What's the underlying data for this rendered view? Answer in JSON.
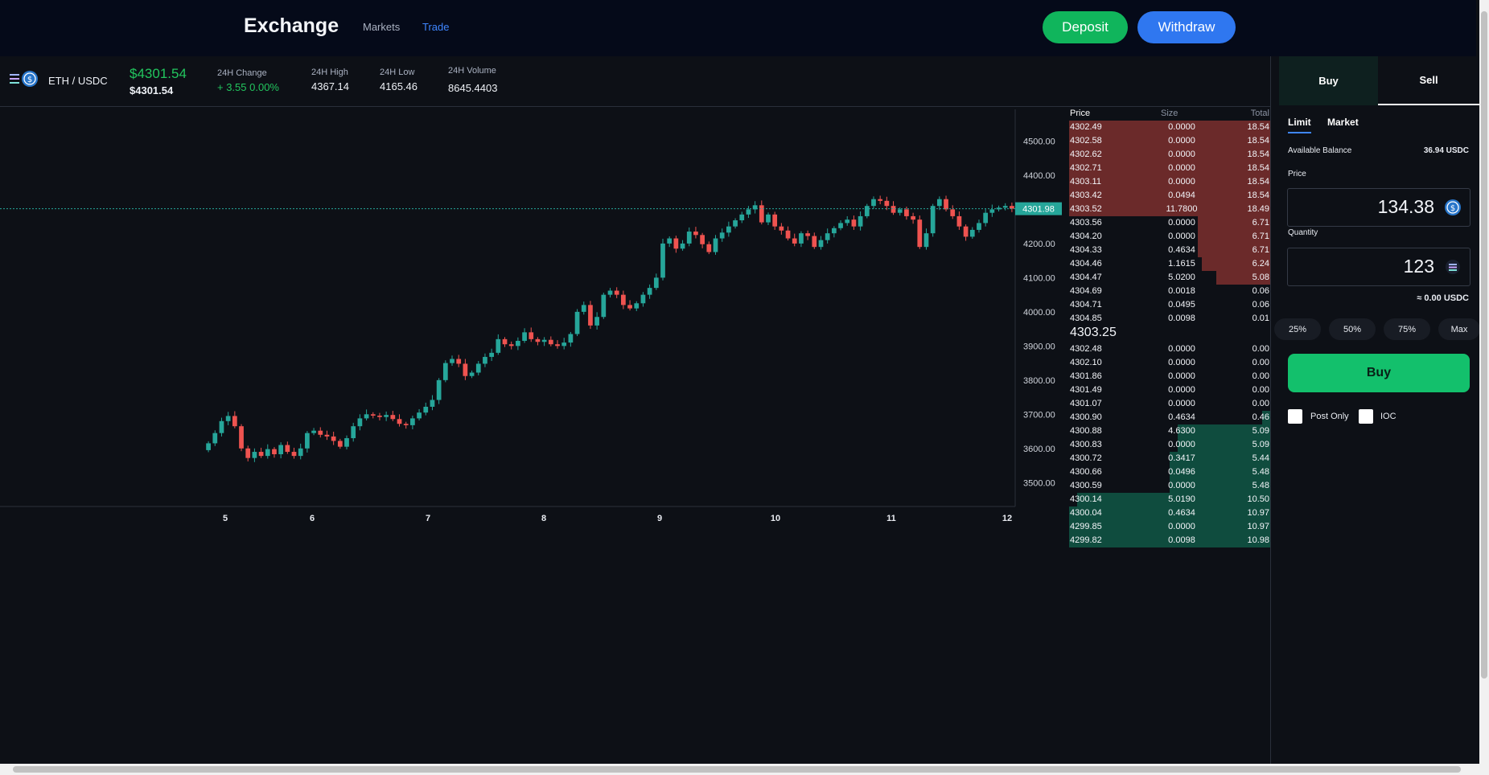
{
  "header": {
    "logo": "Exchange",
    "nav": [
      "Markets",
      "Trade"
    ],
    "deposit_label": "Deposit",
    "withdraw_label": "Withdraw"
  },
  "ticker": {
    "pair": "ETH / USDC",
    "price_big": "$4301.54",
    "price_small": "$4301.54",
    "change_label": "24H Change",
    "change_value": "+ 3.55 0.00%",
    "high_label": "24H High",
    "high_value": "4367.14",
    "low_label": "24H Low",
    "low_value": "4165.46",
    "volume_label": "24H Volume",
    "volume_value": "8645.4403"
  },
  "chart_data": {
    "type": "candlestick",
    "x_ticks": [
      "5",
      "6",
      "7",
      "8",
      "9",
      "10",
      "11",
      "12"
    ],
    "y_ticks": [
      "4500.00",
      "4400.00",
      "4300.00",
      "4200.00",
      "4100.00",
      "4000.00",
      "3900.00",
      "3800.00",
      "3700.00",
      "3600.00",
      "3500.00"
    ],
    "ylim": [
      3430,
      4600
    ],
    "current_price_label": "4301.98",
    "current_price": 4301.98,
    "up_color": "#26a69a",
    "down_color": "#ef5350",
    "closes": [
      3615,
      3645,
      3680,
      3695,
      3665,
      3600,
      3572,
      3590,
      3578,
      3598,
      3583,
      3610,
      3590,
      3578,
      3600,
      3645,
      3652,
      3640,
      3635,
      3622,
      3605,
      3630,
      3665,
      3688,
      3700,
      3696,
      3692,
      3698,
      3686,
      3672,
      3668,
      3688,
      3705,
      3722,
      3742,
      3800,
      3850,
      3862,
      3848,
      3812,
      3822,
      3848,
      3868,
      3880,
      3920,
      3905,
      3900,
      3915,
      3940,
      3920,
      3912,
      3918,
      3905,
      3900,
      3910,
      3935,
      4000,
      4020,
      3960,
      3985,
      4050,
      4062,
      4050,
      4020,
      4010,
      4025,
      4050,
      4070,
      4100,
      4200,
      4215,
      4185,
      4200,
      4235,
      4225,
      4198,
      4175,
      4215,
      4232,
      4250,
      4268,
      4285,
      4300,
      4312,
      4262,
      4285,
      4250,
      4238,
      4215,
      4200,
      4230,
      4222,
      4190,
      4210,
      4230,
      4245,
      4260,
      4270,
      4250,
      4280,
      4310,
      4330,
      4325,
      4310,
      4290,
      4300,
      4280,
      4270,
      4190,
      4230,
      4310,
      4330,
      4300,
      4280,
      4250,
      4220,
      4240,
      4260,
      4290,
      4300,
      4305,
      4310,
      4302
    ]
  },
  "orderbook": {
    "headers": {
      "price": "Price",
      "size": "Size",
      "total": "Total"
    },
    "asks": [
      {
        "price": "4302.49",
        "size": "0.0000",
        "total": "18.54",
        "depth": 1.0
      },
      {
        "price": "4302.58",
        "size": "0.0000",
        "total": "18.54",
        "depth": 1.0
      },
      {
        "price": "4302.62",
        "size": "0.0000",
        "total": "18.54",
        "depth": 1.0
      },
      {
        "price": "4302.71",
        "size": "0.0000",
        "total": "18.54",
        "depth": 1.0
      },
      {
        "price": "4303.11",
        "size": "0.0000",
        "total": "18.54",
        "depth": 1.0
      },
      {
        "price": "4303.42",
        "size": "0.0494",
        "total": "18.54",
        "depth": 1.0
      },
      {
        "price": "4303.52",
        "size": "11.7800",
        "total": "18.49",
        "depth": 1.0
      },
      {
        "price": "4303.56",
        "size": "0.0000",
        "total": "6.71",
        "depth": 0.36
      },
      {
        "price": "4304.20",
        "size": "0.0000",
        "total": "6.71",
        "depth": 0.36
      },
      {
        "price": "4304.33",
        "size": "0.4634",
        "total": "6.71",
        "depth": 0.36
      },
      {
        "price": "4304.46",
        "size": "1.1615",
        "total": "6.24",
        "depth": 0.34
      },
      {
        "price": "4304.47",
        "size": "5.0200",
        "total": "5.08",
        "depth": 0.27
      },
      {
        "price": "4304.69",
        "size": "0.0018",
        "total": "0.06",
        "depth": 0
      },
      {
        "price": "4304.71",
        "size": "0.0495",
        "total": "0.06",
        "depth": 0
      },
      {
        "price": "4304.85",
        "size": "0.0098",
        "total": "0.01",
        "depth": 0
      }
    ],
    "mid": "4303.25",
    "bids": [
      {
        "price": "4302.48",
        "size": "0.0000",
        "total": "0.00",
        "depth": 0
      },
      {
        "price": "4302.10",
        "size": "0.0000",
        "total": "0.00",
        "depth": 0
      },
      {
        "price": "4301.86",
        "size": "0.0000",
        "total": "0.00",
        "depth": 0
      },
      {
        "price": "4301.49",
        "size": "0.0000",
        "total": "0.00",
        "depth": 0
      },
      {
        "price": "4301.07",
        "size": "0.0000",
        "total": "0.00",
        "depth": 0
      },
      {
        "price": "4300.90",
        "size": "0.4634",
        "total": "0.46",
        "depth": 0.04
      },
      {
        "price": "4300.88",
        "size": "4.6300",
        "total": "5.09",
        "depth": 0.46
      },
      {
        "price": "4300.83",
        "size": "0.0000",
        "total": "5.09",
        "depth": 0.46
      },
      {
        "price": "4300.72",
        "size": "0.3417",
        "total": "5.44",
        "depth": 0.5
      },
      {
        "price": "4300.66",
        "size": "0.0496",
        "total": "5.48",
        "depth": 0.5
      },
      {
        "price": "4300.59",
        "size": "0.0000",
        "total": "5.48",
        "depth": 0.5
      },
      {
        "price": "4300.14",
        "size": "5.0190",
        "total": "10.50",
        "depth": 0.96
      },
      {
        "price": "4300.04",
        "size": "0.4634",
        "total": "10.97",
        "depth": 1.0
      },
      {
        "price": "4299.85",
        "size": "0.0000",
        "total": "10.97",
        "depth": 1.0
      },
      {
        "price": "4299.82",
        "size": "0.0098",
        "total": "10.98",
        "depth": 1.0
      }
    ],
    "ask_color": "#6b2a2a",
    "bid_color": "#0f4c3e"
  },
  "trade": {
    "tab_buy": "Buy",
    "tab_sell": "Sell",
    "order_types": [
      "Limit",
      "Market"
    ],
    "balance_label": "Available Balance",
    "balance_value": "36.94 USDC",
    "price_label": "Price",
    "price_value": "134.38",
    "quantity_label": "Quantity",
    "quantity_value": "123",
    "approx": "≈ 0.00 USDC",
    "percents": [
      "25%",
      "50%",
      "75%",
      "Max"
    ],
    "submit_label": "Buy",
    "post_only_label": "Post Only",
    "ioc_label": "IOC"
  },
  "icons": {
    "usdc": "usdc-coin-icon",
    "token": "token-icon"
  }
}
